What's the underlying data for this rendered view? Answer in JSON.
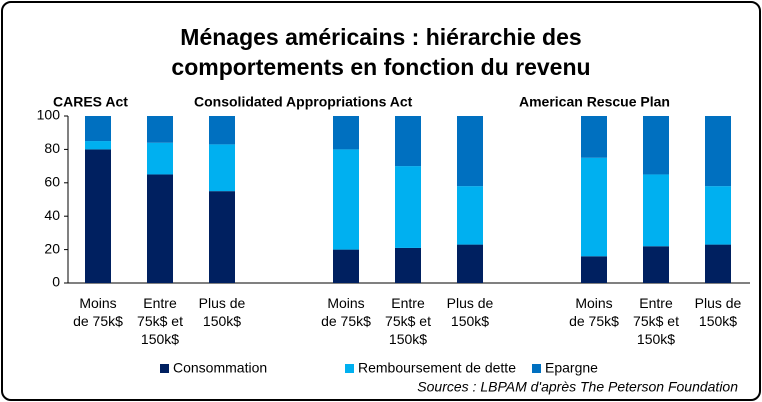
{
  "chart_data": {
    "type": "bar",
    "stacked": true,
    "title": "Ménages américains : hiérarchie des\ncomportements en fonction du revenu",
    "group_labels": [
      "CARES Act",
      "Consolidated Appropriations Act",
      "American Rescue Plan"
    ],
    "categories": [
      "Moins\nde 75k$",
      "Entre\n75k$ et\n150k$",
      "Plus de\n150k$",
      null,
      "Moins\nde 75k$",
      "Entre\n75k$ et\n150k$",
      "Plus de\n150k$",
      null,
      "Moins\nde 75k$",
      "Entre\n75k$ et\n150k$",
      "Plus de\n150k$"
    ],
    "series": [
      {
        "name": "Consommation",
        "color": "#002060",
        "values": [
          80,
          65,
          55,
          null,
          20,
          21,
          23,
          null,
          16,
          22,
          23
        ]
      },
      {
        "name": "Remboursement de dette",
        "color": "#00b0f0",
        "values": [
          5,
          19,
          28,
          null,
          60,
          49,
          35,
          null,
          59,
          43,
          35
        ]
      },
      {
        "name": "Epargne",
        "color": "#0070c0",
        "values": [
          15,
          16,
          17,
          null,
          20,
          30,
          42,
          null,
          25,
          35,
          42
        ]
      }
    ],
    "ylim": [
      0,
      100
    ],
    "yticks": [
      0,
      20,
      40,
      60,
      80,
      100
    ],
    "grid": false,
    "legend": "bottom",
    "source": "Sources : LBPAM d'après The Peterson Foundation"
  }
}
